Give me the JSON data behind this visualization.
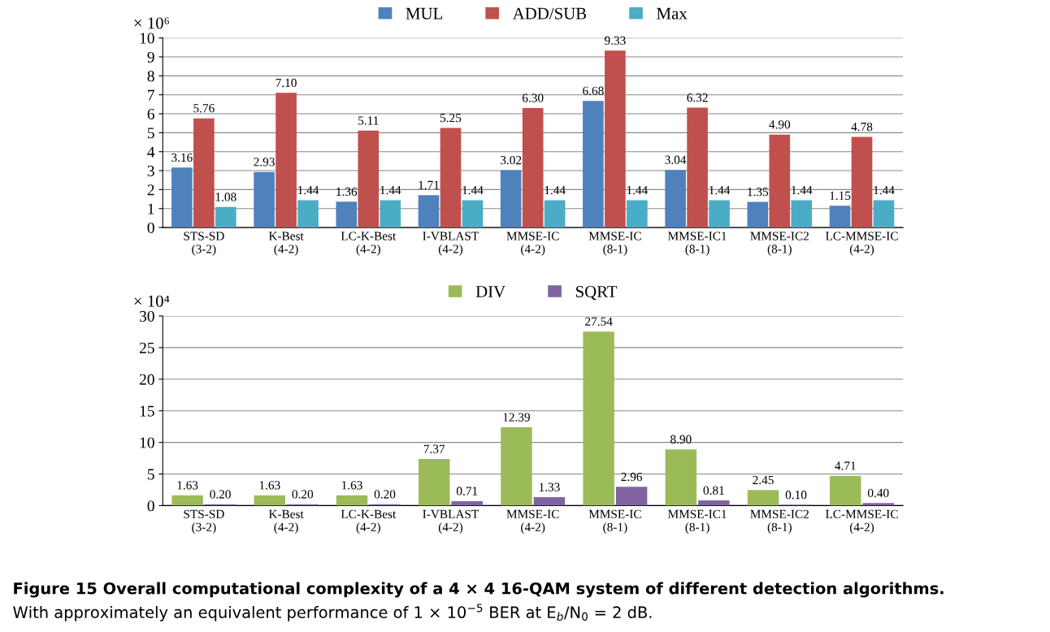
{
  "chart_data": [
    {
      "type": "bar",
      "ylabel": "× 10⁶",
      "categories": [
        "STS-SD\n(3-2)",
        "K-Best\n(4-2)",
        "LC-K-Best\n(4-2)",
        "I-VBLAST\n(4-2)",
        "MMSE-IC\n(4-2)",
        "MMSE-IC\n(8-1)",
        "MMSE-IC1\n(8-1)",
        "MMSE-IC2\n(8-1)",
        "LC-MMSE-IC\n(4-2)"
      ],
      "series": [
        {
          "name": "MUL",
          "color": "#4f81bd",
          "values": [
            3.16,
            2.93,
            1.36,
            1.71,
            3.02,
            6.68,
            3.04,
            1.35,
            1.15
          ],
          "value_labels": [
            "3.16",
            "2.93",
            "1.36",
            "1.71",
            "3.02",
            "6.68",
            "3.04",
            "1.35",
            "1.15"
          ]
        },
        {
          "name": "ADD/SUB",
          "color": "#c0504d",
          "values": [
            5.76,
            7.1,
            5.11,
            5.25,
            6.3,
            9.33,
            6.32,
            4.9,
            4.78
          ],
          "value_labels": [
            "5.76",
            "7.10",
            "5.11",
            "5.25",
            "6.30",
            "9.33",
            "6.32",
            "4.90",
            "4.78"
          ]
        },
        {
          "name": "Max",
          "color": "#4bacc6",
          "values": [
            1.08,
            1.44,
            1.44,
            1.44,
            1.44,
            1.44,
            1.44,
            1.44,
            1.44
          ],
          "value_labels": [
            "1.08",
            "1.44",
            "1.44",
            "1.44",
            "1.44",
            "1.44",
            "1.44",
            "1.44",
            "1.44"
          ]
        }
      ],
      "ylim": [
        0,
        10
      ],
      "yticks": [
        0,
        1,
        2,
        3,
        4,
        5,
        6,
        7,
        8,
        9,
        10
      ],
      "grid": "y",
      "legend": "top"
    },
    {
      "type": "bar",
      "ylabel": "× 10⁴",
      "categories": [
        "STS-SD\n(3-2)",
        "K-Best\n(4-2)",
        "LC-K-Best\n(4-2)",
        "I-VBLAST\n(4-2)",
        "MMSE-IC\n(4-2)",
        "MMSE-IC\n(8-1)",
        "MMSE-IC1\n(8-1)",
        "MMSE-IC2\n(8-1)",
        "LC-MMSE-IC\n(4-2)"
      ],
      "series": [
        {
          "name": "DIV",
          "color": "#9bbb59",
          "values": [
            1.63,
            1.63,
            1.63,
            7.37,
            12.39,
            27.54,
            8.9,
            2.45,
            4.71
          ],
          "value_labels": [
            "1.63",
            "1.63",
            "1.63",
            "7.37",
            "12.39",
            "27.54",
            "8.90",
            "2.45",
            "4.71"
          ]
        },
        {
          "name": "SQRT",
          "color": "#8064a2",
          "values": [
            0.2,
            0.2,
            0.2,
            0.71,
            1.33,
            2.96,
            0.81,
            0.1,
            0.4
          ],
          "value_labels": [
            "0.20",
            "0.20",
            "0.20",
            "0.71",
            "1.33",
            "2.96",
            "0.81",
            "0.10",
            "0.40"
          ]
        }
      ],
      "ylim": [
        0,
        30
      ],
      "yticks": [
        0,
        5,
        10,
        15,
        20,
        25,
        30
      ],
      "grid": "y",
      "legend": "top",
      "annotations": [
        "Figure 15 Overall computational complexity of a 4 × 4 16-QAM system of different detection algorithms.",
        "With approximately an equivalent performance of 1 × 10$^{−5}$ BER at E$_{b}$/N$_{0}$ = 2 dB."
      ]
    }
  ]
}
